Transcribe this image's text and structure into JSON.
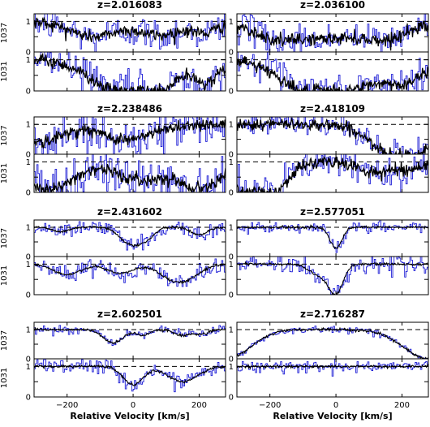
{
  "chart_data": {
    "type": "line",
    "xlabel": "Relative Velocity [km/s]",
    "xlim": [
      -300,
      280
    ],
    "ylim": [
      0,
      1.25
    ],
    "x_ticks": [
      -200,
      0,
      200
    ],
    "y_ticks": [
      0,
      0.5,
      1
    ],
    "y_tick_labels": [
      "0",
      "",
      "1"
    ],
    "x_tick_labels": [
      "−200",
      "0",
      "200"
    ],
    "rows": [
      "1037",
      "1031"
    ],
    "continuum_level": 1,
    "colors": {
      "data": "#1f1fd6",
      "model": "#000000",
      "continuum": "#000000"
    },
    "panels": [
      {
        "z": "z=2.016083",
        "col": 0,
        "row": 0,
        "quality": "noisy",
        "1037": {
          "noise": 0.28,
          "absorbers": [
            [
              -120,
              0.5,
              70
            ],
            [
              80,
              0.45,
              60
            ],
            [
              220,
              0.35,
              40
            ]
          ]
        },
        "1031": {
          "noise": 0.3,
          "absorbers": [
            [
              -40,
              0.95,
              90
            ],
            [
              60,
              0.9,
              60
            ],
            [
              220,
              0.7,
              40
            ]
          ]
        }
      },
      {
        "z": "z=2.036100",
        "col": 1,
        "row": 0,
        "quality": "noisy",
        "1037": {
          "noise": 0.25,
          "absorbers": [
            [
              -180,
              0.55,
              70
            ],
            [
              -20,
              0.5,
              80
            ],
            [
              150,
              0.55,
              70
            ]
          ]
        },
        "1031": {
          "noise": 0.28,
          "absorbers": [
            [
              -100,
              0.7,
              80
            ],
            [
              50,
              0.85,
              110
            ],
            [
              220,
              0.5,
              50
            ]
          ]
        }
      },
      {
        "z": "z=2.238486",
        "col": 0,
        "row": 1,
        "quality": "noisy",
        "1037": {
          "noise": 0.35,
          "absorbers": [
            [
              -280,
              0.6,
              60
            ],
            [
              -20,
              0.5,
              80
            ]
          ]
        },
        "1031": {
          "noise": 0.4,
          "absorbers": [
            [
              -250,
              0.9,
              70
            ],
            [
              20,
              0.6,
              70
            ],
            [
              200,
              0.85,
              60
            ]
          ]
        }
      },
      {
        "z": "z=2.418109",
        "col": 1,
        "row": 1,
        "quality": "noisy",
        "1037": {
          "noise": 0.22,
          "absorbers": [
            [
              150,
              0.7,
              60
            ],
            [
              250,
              0.8,
              70
            ]
          ]
        },
        "1031": {
          "noise": 0.28,
          "absorbers": [
            [
              -260,
              0.9,
              70
            ],
            [
              -200,
              0.6,
              50
            ],
            [
              120,
              0.35,
              50
            ],
            [
              230,
              0.2,
              40
            ]
          ]
        }
      },
      {
        "z": "z=2.431602",
        "col": 0,
        "row": 2,
        "quality": "medium",
        "1037": {
          "noise": 0.12,
          "absorbers": [
            [
              -220,
              0.15,
              25
            ],
            [
              -10,
              0.55,
              30
            ],
            [
              40,
              0.35,
              25
            ],
            [
              200,
              0.25,
              25
            ]
          ]
        },
        "1031": {
          "noise": 0.13,
          "absorbers": [
            [
              -200,
              0.35,
              40
            ],
            [
              -40,
              0.3,
              40
            ],
            [
              140,
              0.6,
              50
            ]
          ]
        }
      },
      {
        "z": "z=2.577051",
        "col": 1,
        "row": 2,
        "quality": "medium",
        "1037": {
          "noise": 0.1,
          "absorbers": [
            [
              0,
              0.72,
              18
            ]
          ]
        },
        "1031": {
          "noise": 0.14,
          "absorbers": [
            [
              0,
              0.9,
              22
            ],
            [
              -50,
              0.35,
              30
            ]
          ]
        }
      },
      {
        "z": "z=2.602501",
        "col": 0,
        "row": 3,
        "quality": "clean",
        "1037": {
          "noise": 0.08,
          "absorbers": [
            [
              -60,
              0.45,
              30
            ],
            [
              30,
              0.2,
              20
            ],
            [
              150,
              0.2,
              25
            ],
            [
              210,
              0.15,
              20
            ]
          ]
        },
        "1031": {
          "noise": 0.12,
          "absorbers": [
            [
              0,
              0.6,
              30
            ],
            [
              150,
              0.5,
              45
            ]
          ]
        }
      },
      {
        "z": "z=2.716287",
        "col": 1,
        "row": 3,
        "quality": "clean",
        "1037": {
          "noise": 0.05,
          "absorbers": [
            [
              -330,
              1.0,
              70
            ],
            [
              280,
              1.0,
              75
            ]
          ]
        },
        "1031": {
          "noise": 0.09,
          "absorbers": []
        }
      }
    ]
  }
}
